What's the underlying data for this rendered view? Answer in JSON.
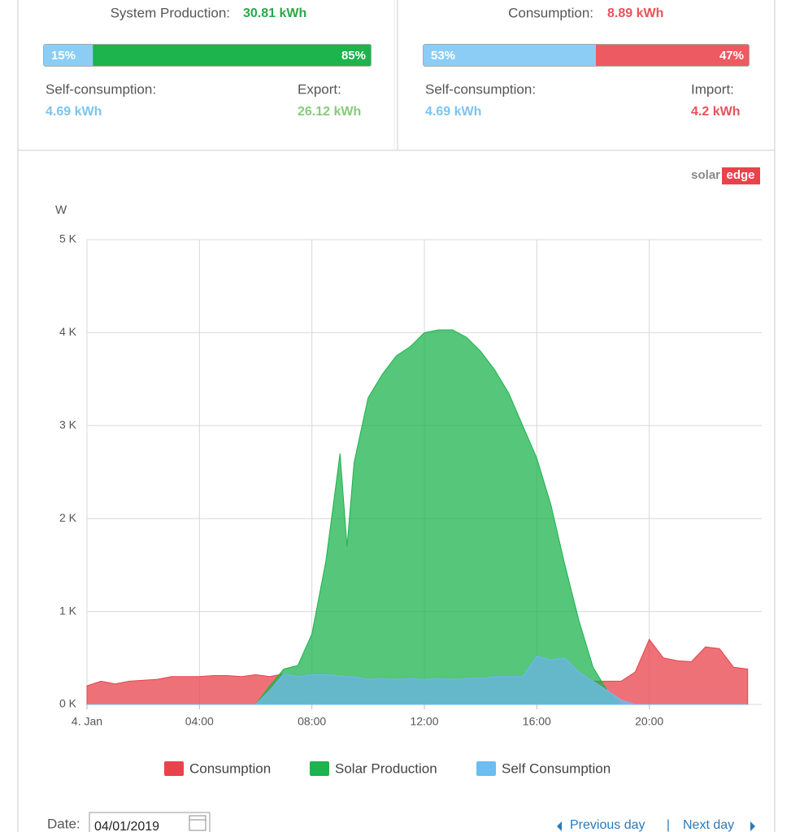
{
  "production": {
    "label": "System Production:",
    "value": "30.81 kWh",
    "bar": [
      "15%",
      "85%"
    ],
    "left_label": "Self-consumption:",
    "left_value": "4.69 kWh",
    "right_label": "Export:",
    "right_value": "26.12 kWh"
  },
  "consumption": {
    "label": "Consumption:",
    "value": "8.89 kWh",
    "bar": [
      "53%",
      "47%"
    ],
    "left_label": "Self-consumption:",
    "left_value": "4.69 kWh",
    "right_label": "Import:",
    "right_value": "4.2 kWh"
  },
  "logo": [
    "solar",
    "edge"
  ],
  "chart_data": {
    "type": "area",
    "y_label": "W",
    "x": [
      0,
      0.5,
      1,
      1.5,
      2,
      2.5,
      3,
      3.5,
      4,
      4.5,
      5,
      5.5,
      6,
      6.5,
      7,
      7.5,
      8,
      8.5,
      9,
      9.25,
      9.5,
      10,
      10.5,
      11,
      11.5,
      12,
      12.5,
      13,
      13.5,
      14,
      14.5,
      15,
      15.5,
      16,
      16.5,
      17,
      17.5,
      18,
      18.5,
      19,
      19.5,
      20,
      20.5,
      21,
      21.5,
      22,
      22.5,
      23,
      23.5
    ],
    "xlim": [
      0,
      24
    ],
    "xticks": [
      {
        "value": 0,
        "label": "4. Jan"
      },
      {
        "value": 4,
        "label": "04:00"
      },
      {
        "value": 8,
        "label": "08:00"
      },
      {
        "value": 12,
        "label": "12:00"
      },
      {
        "value": 16,
        "label": "16:00"
      },
      {
        "value": 20,
        "label": "20:00"
      }
    ],
    "ylim": [
      0,
      5000
    ],
    "yticks": [
      {
        "value": 0,
        "label": "0 K"
      },
      {
        "value": 1000,
        "label": "1 K"
      },
      {
        "value": 2000,
        "label": "2 K"
      },
      {
        "value": 3000,
        "label": "3 K"
      },
      {
        "value": 4000,
        "label": "4 K"
      },
      {
        "value": 5000,
        "label": "5 K"
      }
    ],
    "grid": true,
    "series": [
      {
        "name": "Consumption",
        "color": "#e8424b",
        "values": [
          200,
          250,
          220,
          250,
          260,
          270,
          300,
          300,
          300,
          310,
          310,
          300,
          320,
          300,
          330,
          300,
          320,
          320,
          310,
          300,
          300,
          270,
          280,
          270,
          280,
          270,
          280,
          270,
          280,
          280,
          300,
          300,
          300,
          520,
          480,
          500,
          350,
          250,
          250,
          250,
          350,
          700,
          500,
          470,
          460,
          620,
          600,
          400,
          380
        ]
      },
      {
        "name": "Solar Production",
        "color": "#1db34d",
        "values": [
          0,
          0,
          0,
          0,
          0,
          0,
          0,
          0,
          0,
          0,
          0,
          0,
          0,
          200,
          380,
          420,
          760,
          1550,
          2700,
          1700,
          2600,
          3300,
          3550,
          3750,
          3850,
          4000,
          4030,
          4030,
          3950,
          3800,
          3600,
          3350,
          3000,
          2650,
          2150,
          1500,
          900,
          400,
          150,
          0,
          0,
          0,
          0,
          0,
          0,
          0,
          0,
          0,
          0
        ]
      },
      {
        "name": "Self Consumption",
        "color": "#6cbdf0",
        "values": [
          0,
          0,
          0,
          0,
          0,
          0,
          0,
          0,
          0,
          0,
          0,
          0,
          0,
          150,
          330,
          300,
          320,
          320,
          310,
          300,
          300,
          270,
          280,
          270,
          280,
          270,
          280,
          270,
          280,
          280,
          300,
          300,
          300,
          520,
          480,
          500,
          350,
          250,
          150,
          50,
          0,
          0,
          0,
          0,
          0,
          0,
          0,
          0,
          0
        ]
      }
    ]
  },
  "footer": {
    "date_label": "Date:",
    "date_value": "04/01/2019",
    "previous": "Previous day",
    "separator": "|",
    "next": "Next day"
  }
}
